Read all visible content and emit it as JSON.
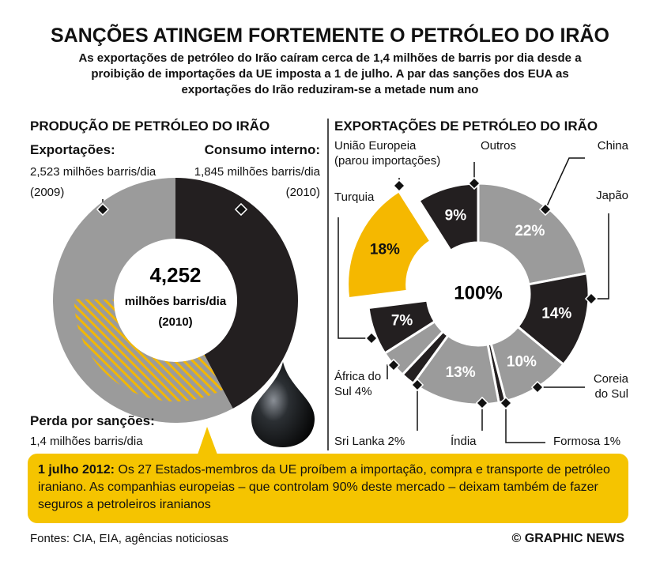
{
  "header": {
    "title": "SANÇÕES ATINGEM FORTEMENTE O PETRÓLEO DO IRÃO",
    "subtitle": "As exportações de petróleo do Irão caíram cerca de 1,4 milhões de barris por dia desde a proibição de importações da UE imposta a 1 de julho. A par das sanções dos EUA as exportações do Irão reduziram-se a metade num ano"
  },
  "chart_data": [
    {
      "type": "donut",
      "title": "PRODUÇÃO DE PETRÓLEO DO IRÃO",
      "categories": [
        "Exportações:",
        "Consumo interno:"
      ],
      "values": [
        2.523,
        1.845
      ],
      "value_labels": [
        "2,523 milhões barris/dia",
        "1,845 milhões barris/dia"
      ],
      "years": [
        "(2009)",
        "(2010)"
      ],
      "colors": [
        "#9b9b9b",
        "#231f20"
      ],
      "center": {
        "value": 4.252,
        "label": "4,252",
        "unit": "milhões barris/dia",
        "year": "(2010)"
      },
      "loss": {
        "label": "Perda por sanções:",
        "value": 1.4,
        "value_label": "1,4 milhões barris/dia",
        "color": "#f2b705"
      }
    },
    {
      "type": "donut",
      "title": "EXPORTAÇÕES DE PETRÓLEO DO IRÃO",
      "categories": [
        "China",
        "Japão",
        "Coreia do Sul",
        "Formosa",
        "Índia",
        "Sri Lanka",
        "África do Sul",
        "Turquia",
        "União Europeia",
        "Outros"
      ],
      "values": [
        22,
        14,
        10,
        1,
        13,
        2,
        4,
        7,
        18,
        9
      ],
      "value_labels": [
        "22%",
        "14%",
        "10%",
        "1%",
        "13%",
        "2%",
        "4%",
        "7%",
        "18%",
        "9%"
      ],
      "colors": [
        "#9b9b9b",
        "#231f20",
        "#9b9b9b",
        "#231f20",
        "#9b9b9b",
        "#231f20",
        "#9b9b9b",
        "#231f20",
        "#f5b800",
        "#231f20"
      ],
      "subnote": "(parou importações)",
      "center": {
        "value": 100,
        "label": "100%"
      }
    }
  ],
  "note": {
    "date": "1 julho 2012:",
    "text": "Os 27 Estados-membros da UE proíbem a importação, compra e transporte de petróleo iraniano. As companhias europeias – que controlam 90% deste mercado – deixam também de fazer seguros a petroleiros iranianos"
  },
  "footer": {
    "sources": "Fontes: CIA, EIA, agências noticiosas",
    "credit": "© GRAPHIC NEWS"
  }
}
